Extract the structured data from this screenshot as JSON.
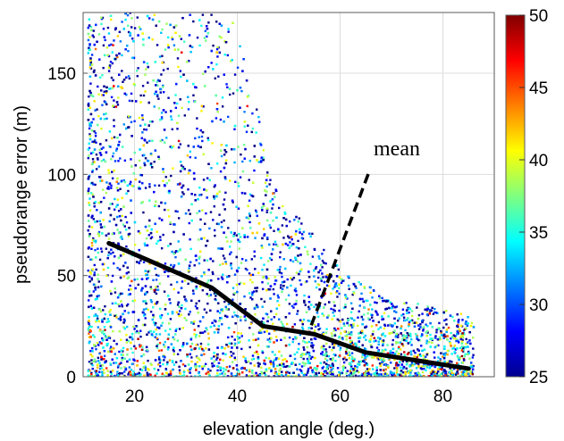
{
  "chart_data": {
    "type": "scatter",
    "xlabel": "elevation angle (deg.)",
    "ylabel": "pseudorange error (m)",
    "xlim": [
      10,
      90
    ],
    "ylim": [
      0,
      180
    ],
    "xticks": [
      20,
      40,
      60,
      80
    ],
    "yticks": [
      0,
      50,
      100,
      150
    ],
    "grid": true,
    "colorbar": {
      "colormap": "jet",
      "range": [
        25,
        50
      ],
      "ticks": [
        25,
        30,
        35,
        40,
        45,
        50
      ],
      "location": "right"
    },
    "scatter_description_colors": {
      "low": "#00008f",
      "mid": "#00ffff",
      "high": "#800000"
    },
    "mean_line": {
      "color": "#000000",
      "x": [
        15,
        25,
        35,
        45,
        55,
        65,
        75,
        85
      ],
      "y": [
        66,
        55,
        44,
        25,
        21,
        12,
        8,
        4
      ]
    },
    "annotations": [
      {
        "text": "mean",
        "points_to": {
          "x": 54,
          "y": 21
        }
      }
    ]
  }
}
